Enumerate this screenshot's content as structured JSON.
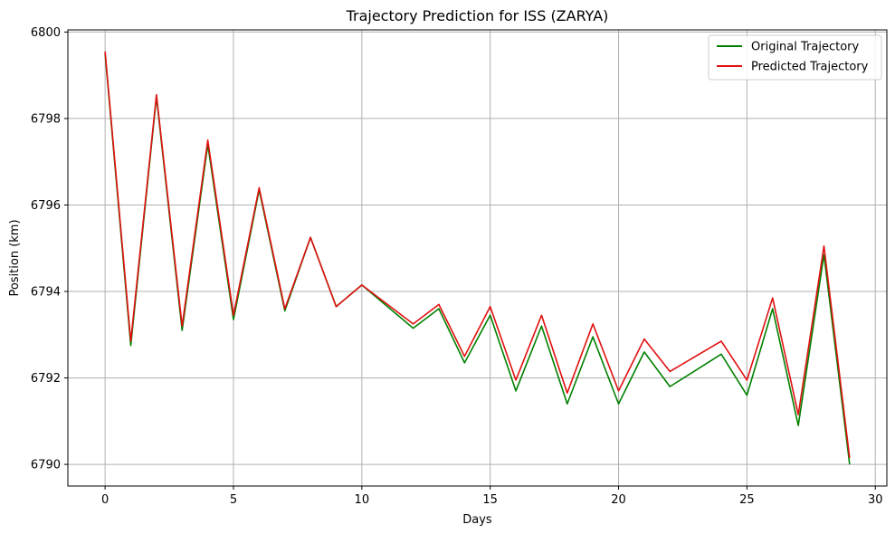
{
  "chart_data": {
    "type": "line",
    "title": "Trajectory Prediction for ISS (ZARYA)",
    "xlabel": "Days",
    "ylabel": "Position (km)",
    "xlim": [
      -1.45,
      30.45
    ],
    "ylim": [
      6789.5,
      6800.05
    ],
    "xticks": [
      0,
      5,
      10,
      15,
      20,
      25,
      30
    ],
    "yticks": [
      6790,
      6792,
      6794,
      6796,
      6798,
      6800
    ],
    "grid": true,
    "legend": "top-right",
    "series": [
      {
        "name": "Original Trajectory",
        "color": "#008000",
        "x": [
          0,
          1,
          2,
          3,
          4,
          5,
          6,
          7,
          8,
          9,
          10,
          12,
          13,
          14,
          15,
          16,
          17,
          18,
          19,
          20,
          21,
          22,
          24,
          25,
          26,
          27,
          28,
          29
        ],
        "y": [
          6799.5,
          6792.75,
          6798.5,
          6793.1,
          6797.4,
          6793.35,
          6796.35,
          6793.55,
          6795.25,
          6793.65,
          6794.15,
          6793.15,
          6793.6,
          6792.35,
          6793.45,
          6791.7,
          6793.2,
          6791.4,
          6792.95,
          6791.4,
          6792.6,
          6791.8,
          6792.55,
          6791.6,
          6793.6,
          6790.9,
          6794.85,
          6790.0
        ]
      },
      {
        "name": "Predicted Trajectory",
        "color": "#e01010",
        "x": [
          0,
          1,
          2,
          3,
          4,
          5,
          6,
          7,
          8,
          9,
          10,
          12,
          13,
          14,
          15,
          16,
          17,
          18,
          19,
          20,
          21,
          22,
          24,
          25,
          26,
          27,
          28,
          29
        ],
        "y": [
          6799.55,
          6792.85,
          6798.55,
          6793.2,
          6797.5,
          6793.45,
          6796.4,
          6793.6,
          6795.25,
          6793.65,
          6794.15,
          6793.25,
          6793.7,
          6792.5,
          6793.65,
          6791.95,
          6793.45,
          6791.65,
          6793.25,
          6791.7,
          6792.9,
          6792.15,
          6792.85,
          6791.95,
          6793.85,
          6791.15,
          6795.05,
          6790.15
        ]
      }
    ]
  }
}
